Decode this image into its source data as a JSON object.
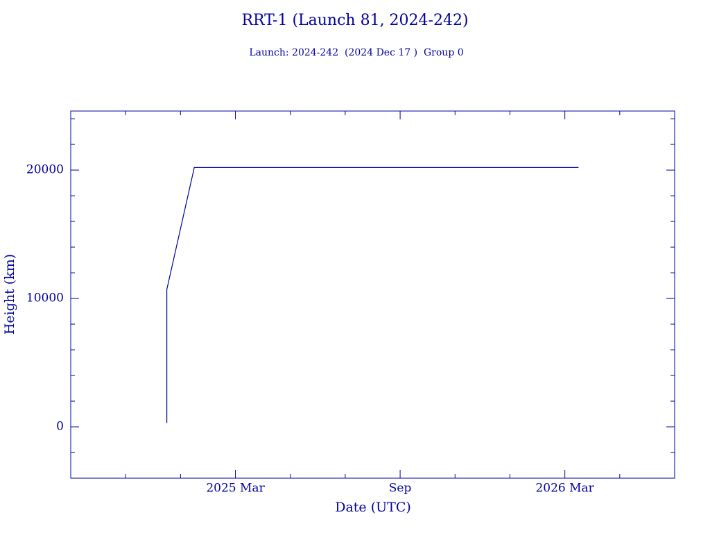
{
  "chart_data": {
    "type": "line",
    "title": "RRT-1 (Launch 81, 2024-242)",
    "subtitle": "Launch: 2024-242  (2024 Dec 17 )  Group 0",
    "x_label": "Date (UTC)",
    "y_label": "Height (km)",
    "x": [
      "2024-12",
      "2024-12",
      "2024-12",
      "2025-01",
      "2026-03"
    ],
    "series": [
      {
        "name": "RRT-1",
        "color": "#0000a0",
        "values": [
          300,
          8200,
          10700,
          20200,
          20200
        ]
      }
    ],
    "xlim": [
      "2024-09",
      "2026-07"
    ],
    "xticks": [
      {
        "value": "2025-03",
        "label": "2025 Mar"
      },
      {
        "value": "2025-09",
        "label": "Sep"
      },
      {
        "value": "2026-03",
        "label": "2026 Mar"
      }
    ],
    "xminorticks": [
      "2024-11",
      "2025-01",
      "2025-05",
      "2025-07",
      "2025-11",
      "2026-01",
      "2026-05"
    ],
    "ylim": [
      -4000,
      24600
    ],
    "yticks": [
      0,
      10000,
      20000
    ],
    "yminorticks": [
      -2000,
      2000,
      4000,
      6000,
      8000,
      12000,
      14000,
      16000,
      18000,
      22000,
      24000
    ],
    "color": "#0000a0"
  }
}
